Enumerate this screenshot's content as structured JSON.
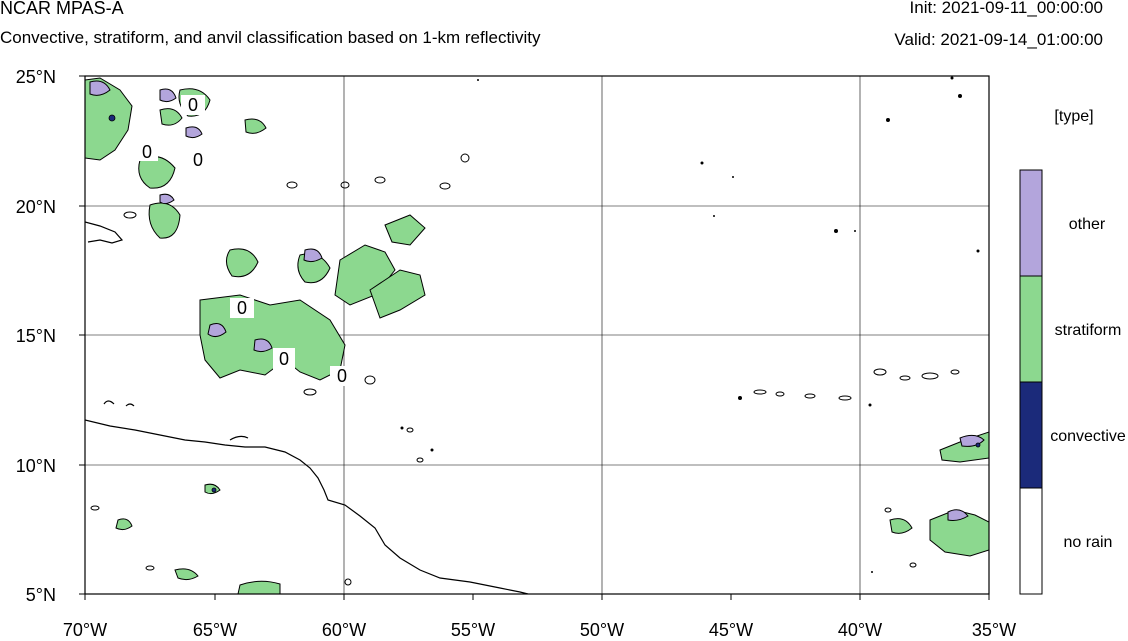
{
  "header": {
    "model": "NCAR MPAS-A",
    "description": "Convective, stratiform, and anvil classification based on 1-km reflectivity",
    "init": "Init: 2021-09-11_00:00:00",
    "valid": "Valid: 2021-09-14_01:00:00"
  },
  "map": {
    "lat_range": [
      5,
      25
    ],
    "lon_range": [
      -70,
      -35
    ],
    "lat_ticks": [
      "5°N",
      "10°N",
      "15°N",
      "20°N",
      "25°N"
    ],
    "lon_ticks": [
      "70°W",
      "65°W",
      "60°W",
      "55°W",
      "50°W",
      "45°W",
      "40°W",
      "35°W"
    ],
    "contour_labels": [
      "0",
      "0",
      "0",
      "0",
      "0",
      "0"
    ],
    "grid": true
  },
  "legend": {
    "title": "[type]",
    "categories": [
      {
        "label": "other",
        "color": "#b3a5dc"
      },
      {
        "label": "stratiform",
        "color": "#8cd88f"
      },
      {
        "label": "convective",
        "color": "#1b2a7a"
      },
      {
        "label": "no rain",
        "color": "#ffffff"
      }
    ]
  }
}
